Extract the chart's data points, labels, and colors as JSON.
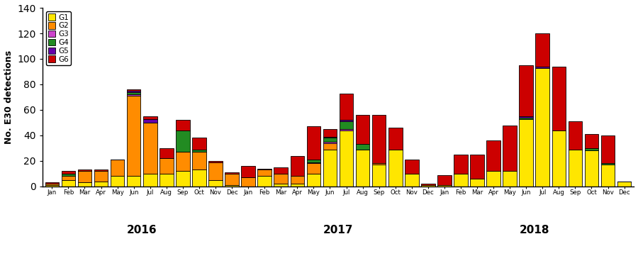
{
  "months": [
    "Jan",
    "Feb",
    "Mar",
    "Apr",
    "May",
    "Jun",
    "Jul",
    "Aug",
    "Sep",
    "Oct",
    "Nov",
    "Dec",
    "Jan",
    "Feb",
    "Mar",
    "Apr",
    "May",
    "Jun",
    "Jul",
    "Aug",
    "Sep",
    "Oct",
    "Nov",
    "Dec",
    "Jan",
    "Feb",
    "Mar",
    "Apr",
    "May",
    "Jun",
    "Jul",
    "Aug",
    "Sep",
    "Oct",
    "Nov",
    "Dec"
  ],
  "G1": [
    1,
    5,
    3,
    4,
    8,
    8,
    10,
    10,
    12,
    13,
    5,
    1,
    0,
    8,
    2,
    2,
    10,
    29,
    44,
    29,
    17,
    29,
    10,
    1,
    1,
    10,
    6,
    12,
    12,
    53,
    93,
    44,
    29,
    28,
    17,
    4
  ],
  "G2": [
    1,
    3,
    9,
    8,
    13,
    63,
    40,
    12,
    15,
    14,
    14,
    9,
    7,
    5,
    8,
    6,
    8,
    5,
    0,
    0,
    1,
    0,
    0,
    0,
    0,
    0,
    0,
    0,
    0,
    0,
    0,
    0,
    0,
    0,
    0,
    0
  ],
  "G3": [
    0,
    0,
    0,
    0,
    0,
    1,
    0,
    0,
    0,
    0,
    0,
    0,
    0,
    0,
    0,
    0,
    1,
    1,
    1,
    0,
    0,
    0,
    0,
    0,
    0,
    0,
    0,
    0,
    0,
    0,
    0,
    0,
    0,
    0,
    0,
    0
  ],
  "G4": [
    0,
    2,
    0,
    0,
    0,
    2,
    0,
    0,
    17,
    2,
    0,
    0,
    0,
    0,
    0,
    0,
    2,
    3,
    6,
    4,
    0,
    0,
    0,
    0,
    0,
    0,
    0,
    0,
    0,
    1,
    0,
    0,
    0,
    2,
    1,
    0
  ],
  "G5": [
    0,
    0,
    0,
    0,
    0,
    1,
    3,
    0,
    0,
    0,
    0,
    0,
    0,
    0,
    0,
    0,
    0,
    1,
    1,
    0,
    0,
    0,
    0,
    0,
    0,
    0,
    0,
    0,
    0,
    1,
    1,
    0,
    0,
    0,
    0,
    0
  ],
  "G6": [
    1,
    2,
    1,
    1,
    0,
    1,
    2,
    8,
    8,
    9,
    1,
    1,
    9,
    1,
    5,
    16,
    26,
    6,
    21,
    23,
    38,
    17,
    11,
    1,
    8,
    15,
    19,
    24,
    36,
    40,
    26,
    50,
    22,
    11,
    22,
    0
  ],
  "colors": {
    "G1": "#FFE600",
    "G2": "#FF8C00",
    "G3": "#CC44CC",
    "G4": "#228B22",
    "G5": "#6600AA",
    "G6": "#CC0000"
  },
  "edgecolor": "#000000",
  "ylabel": "No. E30 detections",
  "ylim": [
    0,
    140
  ],
  "yticks": [
    0,
    20,
    40,
    60,
    80,
    100,
    120,
    140
  ],
  "year_labels": [
    "2016",
    "2017",
    "2018"
  ],
  "figsize": [
    9.0,
    3.61
  ],
  "dpi": 100
}
